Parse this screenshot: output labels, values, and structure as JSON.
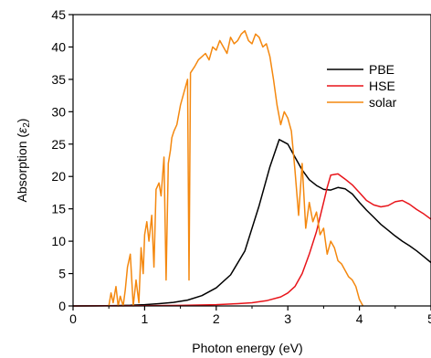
{
  "chart_data": {
    "type": "line",
    "xlabel": "Photon energy (eV)",
    "ylabel_main": "Absorption (",
    "ylabel_symbol": "ε",
    "ylabel_sub": "2",
    "ylabel_close": ")",
    "xlim": [
      0,
      5
    ],
    "ylim": [
      0,
      45
    ],
    "x_ticks": [
      "0",
      "1",
      "2",
      "3",
      "4",
      "5"
    ],
    "y_ticks": [
      "0",
      "5",
      "10",
      "15",
      "20",
      "25",
      "30",
      "35",
      "40",
      "45"
    ],
    "grid": false,
    "legend_position": "top-right",
    "series": [
      {
        "name": "PBE",
        "color": "#000000",
        "x": [
          0,
          0.3,
          0.6,
          0.8,
          1.0,
          1.2,
          1.4,
          1.6,
          1.8,
          2.0,
          2.2,
          2.4,
          2.6,
          2.75,
          2.88,
          3.0,
          3.1,
          3.2,
          3.3,
          3.4,
          3.5,
          3.6,
          3.7,
          3.8,
          3.9,
          4.0,
          4.1,
          4.2,
          4.3,
          4.4,
          4.5,
          4.6,
          4.7,
          4.8,
          4.9,
          5.0
        ],
        "y": [
          0,
          0.02,
          0.05,
          0.1,
          0.2,
          0.35,
          0.55,
          0.9,
          1.6,
          2.8,
          4.8,
          8.5,
          15.5,
          21.5,
          25.7,
          25.0,
          23.0,
          21.0,
          19.5,
          18.6,
          18.0,
          17.9,
          18.3,
          18.1,
          17.3,
          16.0,
          14.8,
          13.7,
          12.6,
          11.7,
          10.8,
          10.0,
          9.3,
          8.5,
          7.6,
          6.7
        ]
      },
      {
        "name": "HSE",
        "color": "#e8141a",
        "x": [
          0,
          0.5,
          1.0,
          1.5,
          2.0,
          2.3,
          2.5,
          2.7,
          2.9,
          3.0,
          3.1,
          3.2,
          3.3,
          3.4,
          3.5,
          3.55,
          3.6,
          3.7,
          3.8,
          3.9,
          4.0,
          4.1,
          4.2,
          4.3,
          4.4,
          4.5,
          4.6,
          4.7,
          4.8,
          4.9,
          5.0
        ],
        "y": [
          0,
          0.01,
          0.03,
          0.08,
          0.2,
          0.35,
          0.5,
          0.8,
          1.4,
          2.0,
          3.0,
          5.0,
          8.0,
          11.5,
          16.0,
          18.3,
          20.2,
          20.4,
          19.6,
          18.7,
          17.5,
          16.3,
          15.6,
          15.3,
          15.5,
          16.1,
          16.3,
          15.7,
          14.9,
          14.2,
          13.4
        ]
      },
      {
        "name": "solar",
        "color": "#f4880f",
        "x": [
          0.5,
          0.53,
          0.56,
          0.6,
          0.63,
          0.66,
          0.7,
          0.73,
          0.76,
          0.8,
          0.84,
          0.88,
          0.92,
          0.95,
          0.98,
          1.0,
          1.03,
          1.06,
          1.1,
          1.13,
          1.16,
          1.2,
          1.23,
          1.27,
          1.3,
          1.33,
          1.36,
          1.38,
          1.41,
          1.45,
          1.5,
          1.55,
          1.6,
          1.62,
          1.64,
          1.7,
          1.75,
          1.8,
          1.85,
          1.9,
          1.95,
          2.0,
          2.05,
          2.1,
          2.15,
          2.2,
          2.25,
          2.3,
          2.35,
          2.4,
          2.45,
          2.5,
          2.55,
          2.6,
          2.65,
          2.7,
          2.75,
          2.8,
          2.85,
          2.9,
          2.95,
          3.0,
          3.05,
          3.1,
          3.15,
          3.2,
          3.25,
          3.3,
          3.35,
          3.4,
          3.45,
          3.5,
          3.55,
          3.6,
          3.65,
          3.7,
          3.75,
          3.8,
          3.85,
          3.9,
          3.95,
          4.0,
          4.05
        ],
        "y": [
          0,
          2.0,
          0.5,
          3.0,
          0.0,
          1.5,
          0.0,
          2.5,
          6.0,
          8.0,
          0.0,
          4.0,
          0.5,
          9.0,
          5.0,
          11.0,
          13.0,
          10.0,
          14.0,
          6.0,
          18.0,
          19.0,
          17.0,
          23.0,
          4.0,
          22.0,
          24.0,
          26.0,
          27.0,
          28.0,
          31.0,
          33.0,
          35.0,
          4.0,
          36.0,
          37.0,
          38.0,
          38.5,
          39.0,
          38.0,
          40.0,
          39.5,
          41.0,
          40.0,
          39.0,
          41.5,
          40.5,
          41.0,
          42.0,
          42.5,
          41.0,
          40.5,
          42.0,
          41.5,
          40.0,
          40.5,
          38.5,
          35.0,
          31.0,
          28.0,
          30.0,
          29.0,
          27.0,
          21.0,
          14.0,
          22.0,
          12.0,
          16.0,
          13.0,
          14.5,
          11.0,
          12.0,
          8.0,
          10.0,
          9.0,
          7.0,
          6.5,
          5.5,
          4.5,
          4.0,
          3.0,
          1.0,
          0.0
        ]
      }
    ]
  }
}
